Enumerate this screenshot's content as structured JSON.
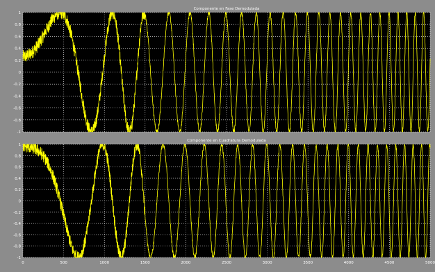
{
  "colors": {
    "background": "#8c8c8c",
    "axes_bg": "#000000",
    "trace": "#ffff00",
    "grid": "#ffffff",
    "text": "#ffffff"
  },
  "chart_data": [
    {
      "type": "line",
      "title": "Componente en Fase Demodulada",
      "xlim": [
        0,
        5000
      ],
      "ylim": [
        -1,
        1
      ],
      "grid": true,
      "yticks": [
        "1",
        "0.8",
        "0.6",
        "0.4",
        "0.2",
        "0",
        "-0.2",
        "-0.4",
        "-0.6",
        "-0.8",
        "-1"
      ],
      "xticks": [],
      "signal": {
        "kind": "chirp",
        "phase_offset_deg": -90,
        "start_phase_deg": 15,
        "end_frequency_cycles_per_sample": 0.01,
        "noise_amplitude": 0.07,
        "samples": 5000
      }
    },
    {
      "type": "line",
      "title": "Componente en Cuadratura Demodulada",
      "xlim": [
        0,
        5000
      ],
      "ylim": [
        -1,
        1
      ],
      "grid": true,
      "yticks": [
        "1",
        "0.8",
        "0.6",
        "0.4",
        "0.2",
        "0",
        "-0.2",
        "-0.4",
        "-0.6",
        "-0.8",
        "-1"
      ],
      "xticks": [
        "0",
        "500",
        "1000",
        "1500",
        "2000",
        "2500",
        "3000",
        "3500",
        "4000",
        "4500",
        "5000"
      ],
      "signal": {
        "kind": "chirp",
        "phase_offset_deg": 0,
        "start_phase_deg": 15,
        "end_frequency_cycles_per_sample": 0.01,
        "noise_amplitude": 0.07,
        "samples": 5000
      }
    }
  ]
}
